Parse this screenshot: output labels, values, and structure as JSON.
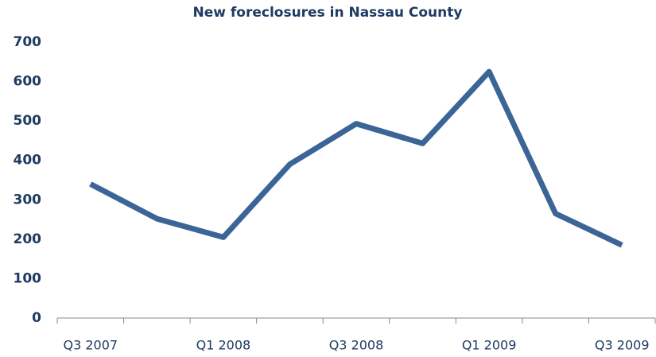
{
  "chart_data": {
    "type": "line",
    "title": "New foreclosures in Nassau County",
    "categories": [
      "Q3 2007",
      null,
      "Q1 2008",
      null,
      "Q3 2008",
      null,
      "Q1 2009",
      null,
      "Q3 2009"
    ],
    "series": [
      {
        "name": "New foreclosures",
        "color": "#3b6597",
        "values": [
          340,
          252,
          205,
          390,
          493,
          443,
          625,
          265,
          185
        ]
      }
    ],
    "ylim": [
      0,
      700
    ],
    "yticks": [
      0,
      100,
      200,
      300,
      400,
      500,
      600,
      700
    ],
    "grid": false
  }
}
